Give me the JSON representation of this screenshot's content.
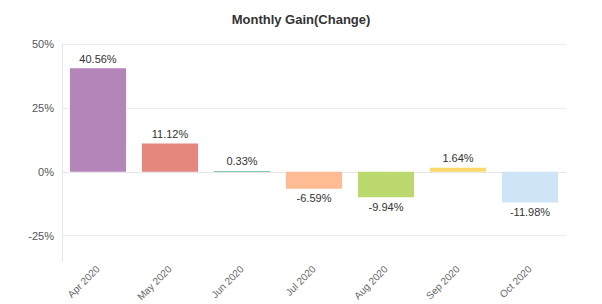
{
  "chart_data": {
    "type": "bar",
    "title": "Monthly Gain(Change)",
    "categories": [
      "Apr 2020",
      "May 2020",
      "Jun 2020",
      "Jul 2020",
      "Aug 2020",
      "Sep 2020",
      "Oct 2020"
    ],
    "values": [
      40.56,
      11.12,
      0.33,
      -6.59,
      -9.94,
      1.64,
      -11.98
    ],
    "value_labels": [
      "40.56%",
      "11.12%",
      "0.33%",
      "-6.59%",
      "-9.94%",
      "1.64%",
      "-11.98%"
    ],
    "colors": [
      "#b385b8",
      "#e5867f",
      "#5bb58c",
      "#ffbb94",
      "#bcd96f",
      "#fcd96b",
      "#cfe4f7"
    ],
    "ylim": [
      -35,
      50
    ],
    "yticks": [
      {
        "value": -25,
        "label": "-25%"
      },
      {
        "value": 0,
        "label": "0%"
      },
      {
        "value": 25,
        "label": "25%"
      },
      {
        "value": 50,
        "label": "50%"
      }
    ],
    "grid": true,
    "data_labels": true
  }
}
